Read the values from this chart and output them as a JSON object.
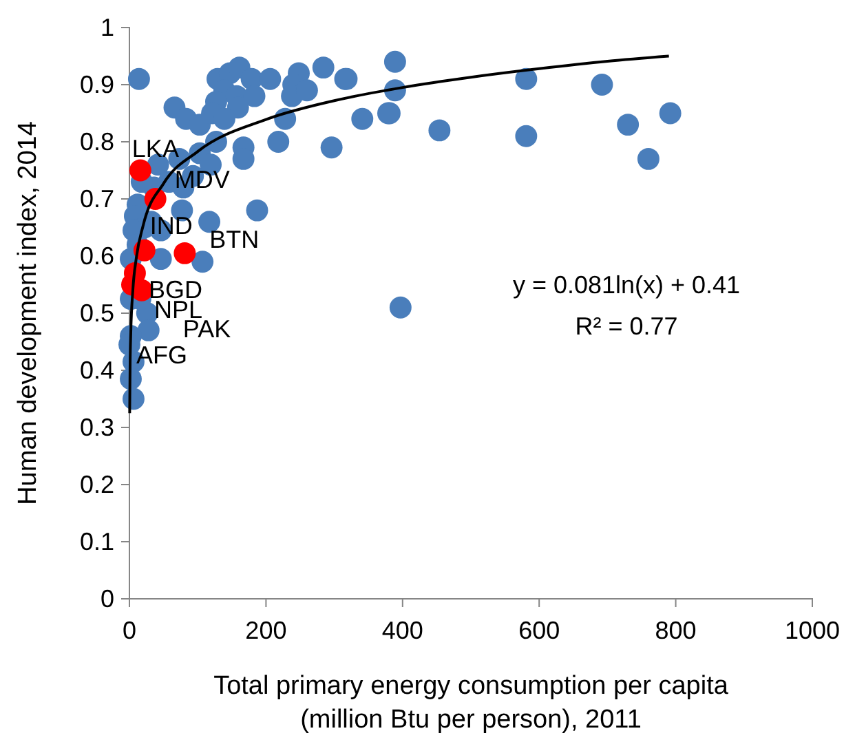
{
  "chart_data": {
    "type": "scatter",
    "xlabel": "Total primary energy consumption per capita\n(million Btu per person), 2011",
    "ylabel": "Human development index, 2014",
    "xlim": [
      0,
      1000
    ],
    "xticks": [
      0,
      200,
      400,
      600,
      800,
      1000
    ],
    "ylim": [
      0,
      1
    ],
    "yticks": [
      0,
      0.1,
      0.2,
      0.3,
      0.4,
      0.5,
      0.6,
      0.7,
      0.8,
      0.9,
      1
    ],
    "grid": false,
    "marker": "circle",
    "series": [
      {
        "color": "#4a7ebb",
        "x": [
          14,
          129,
          147,
          161,
          179,
          206,
          248,
          240,
          284,
          316,
          389,
          139,
          157,
          183,
          238,
          260,
          127,
          159,
          66,
          83,
          103,
          121,
          139,
          228,
          341,
          379,
          454,
          127,
          167,
          218,
          296,
          103,
          119,
          167,
          93,
          73,
          42,
          58,
          36,
          79,
          18,
          12,
          77,
          117,
          187,
          8,
          22,
          6,
          32,
          46,
          46,
          2,
          12,
          107,
          26,
          16,
          2,
          28,
          2,
          6,
          2,
          6,
          0,
          389,
          381,
          581,
          581,
          692,
          730,
          792,
          760,
          318,
          397
        ],
        "values": [
          0.91,
          0.91,
          0.92,
          0.93,
          0.91,
          0.91,
          0.92,
          0.9,
          0.93,
          0.91,
          0.94,
          0.89,
          0.88,
          0.88,
          0.88,
          0.89,
          0.87,
          0.86,
          0.86,
          0.84,
          0.83,
          0.85,
          0.84,
          0.84,
          0.84,
          0.85,
          0.82,
          0.8,
          0.79,
          0.8,
          0.79,
          0.78,
          0.76,
          0.77,
          0.74,
          0.77,
          0.76,
          0.73,
          0.72,
          0.72,
          0.73,
          0.69,
          0.68,
          0.66,
          0.68,
          0.67,
          0.65,
          0.645,
          0.66,
          0.645,
          0.595,
          0.595,
          0.62,
          0.59,
          0.5,
          0.525,
          0.525,
          0.47,
          0.46,
          0.415,
          0.385,
          0.35,
          0.445,
          0.89,
          0.85,
          0.91,
          0.81,
          0.9,
          0.83,
          0.85,
          0.77,
          0.91,
          0.51
        ]
      },
      {
        "color": "#ff0000",
        "x": [
          16,
          38,
          22,
          81,
          8,
          4,
          18
        ],
        "values": [
          0.75,
          0.7,
          0.61,
          0.605,
          0.57,
          0.55,
          0.54
        ]
      },
      {
        "type": "line",
        "marker": "none",
        "color": "#000000",
        "x": [
          0.35,
          1,
          2,
          5,
          10,
          20,
          50,
          100,
          200,
          300,
          400,
          500,
          600,
          700,
          790
        ],
        "values": [
          0.325,
          0.41,
          0.466,
          0.54,
          0.596,
          0.653,
          0.727,
          0.783,
          0.839,
          0.872,
          0.895,
          0.913,
          0.928,
          0.941,
          0.95
        ]
      }
    ],
    "annotations": [
      {
        "text": "LKA",
        "x": 16,
        "y": 0.75
      },
      {
        "text": "MDV",
        "x": 38,
        "y": 0.7
      },
      {
        "text": "IND",
        "x": 22,
        "y": 0.61
      },
      {
        "text": "BTN",
        "x": 81,
        "y": 0.605
      },
      {
        "text": "BGD",
        "x": 8,
        "y": 0.57
      },
      {
        "text": "NPL",
        "x": 4,
        "y": 0.55
      },
      {
        "text": "PAK",
        "x": 18,
        "y": 0.54
      },
      {
        "text": "AFG",
        "x": 2,
        "y": 0.47
      },
      "y = 0.081ln(x) + 0.41",
      "R² = 0.77"
    ]
  }
}
